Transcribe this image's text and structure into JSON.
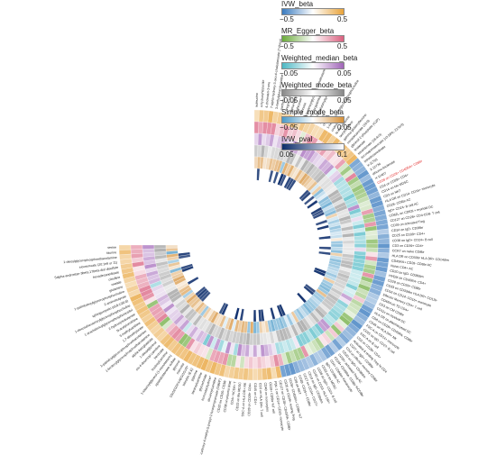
{
  "chart_data": {
    "type": "heatmap",
    "layout": "circular",
    "rings_outer_to_inner": [
      "IVW_beta",
      "MR_Egger_beta",
      "Weighted_median_beta",
      "Weighted_mode_beta",
      "Simple_mode_beta",
      "IVW_pval"
    ],
    "legend": [
      {
        "name": "IVW_beta",
        "range": [
          -0.5,
          0.5
        ],
        "tick_labels": [
          "−0.5",
          "0.5"
        ],
        "colors": [
          "#3a7bbf",
          "#ffffff",
          "#e8a33a"
        ]
      },
      {
        "name": "MR_Egger_beta",
        "range": [
          -0.5,
          0.5
        ],
        "tick_labels": [
          "−0.5",
          "0.5"
        ],
        "colors": [
          "#6aaa3a",
          "#ffffff",
          "#d95f7e"
        ]
      },
      {
        "name": "Weighted_median_beta",
        "range": [
          -0.05,
          0.05
        ],
        "tick_labels": [
          "−0.05",
          "0.05"
        ],
        "colors": [
          "#4cb8c4",
          "#ffffff",
          "#a064b8"
        ]
      },
      {
        "name": "Weighted_mode_beta",
        "range": [
          -0.05,
          0.05
        ],
        "tick_labels": [
          "−0.05",
          "0.05"
        ],
        "colors": [
          "#888888",
          "#ffffff",
          "#888888"
        ]
      },
      {
        "name": "Simple_mode_beta",
        "range": [
          -0.05,
          0.05
        ],
        "tick_labels": [
          "−0.05",
          "0.05"
        ],
        "colors": [
          "#4a9ac8",
          "#ffffff",
          "#d69038"
        ]
      },
      {
        "name": "IVW_pval",
        "range": [
          0.05,
          0.1
        ],
        "tick_labels": [
          "0.05",
          "0.1"
        ],
        "colors": [
          "#0d2d6b",
          "#ffffff"
        ]
      }
    ],
    "labels": [
      "isoleucine",
      "4-hydroxyhippurate",
      "4-cholesten-3-one",
      "7-alpha-hydroxy-3-oxo-4-cholestenoate (7-Hoca)",
      "3-methylglutarylcarnitine",
      "methylsuccinate",
      "pregnenolone",
      "alpha-tocopherol",
      "erythronate*",
      "mannose",
      "1-linolenoylglycerol (1-monolinolenin)",
      "2-hydroxypalmitate",
      "gamma-glutamyltyrosine",
      "glucose",
      "choline",
      "1-heptadecenoylglycerophosphocholine",
      "uridine",
      "N-acetylalanine",
      "laurylcarnitine",
      "gamma-glutamylleucine",
      "nonadecanoate (19:0)",
      "glycerol 2-phosphate (G2P)",
      "linolenate",
      "stearidonate (18:4n3)",
      "docosapentaenoate (n3 DPA; 22:5n3)",
      "tetradecanedioate",
      "X-11793",
      "X-12734",
      "dihomo-linolenate",
      "X-12407",
      "CD28 on CD28+ CD45RA+ CD8br",
      "CD4 on CD28+ CD4+",
      "CD14 on Mo MDSC",
      "CD3 on NKT",
      "HLA DR on CD14- CD16+ monocyte",
      "CD28- CD8br AC",
      "IgD+ CD24- B cell AC",
      "CD62L on CD62L+ myeloid DC",
      "CD127 on CD28+ CD4-CD8- T cell",
      "CD39 on activated Treg",
      "CD24 on IgD- CD38br",
      "CD25 on CD39+ CD4+",
      "CD38 on IgD+ CD24+ B cell",
      "CD3 on CD39+ CD4+",
      "CCR7 on naive CD8br",
      "HLA DR on CD33br HLA DR+ CD14dim",
      "CD45RA+ CD28- CD8br AC",
      "Naive CD4+ AC",
      "CD20 on IgD- CD38dim",
      "HVEM on CD45RA- CD4+",
      "CD28 on CD39+ CD8br",
      "CD33 on CD33dim HLA DR+ CD11b-",
      "CD16 on CD14- CD16+ monocyte",
      "Effector Memory CD4+ T cell",
      "CD4RA on TD CD4+",
      "CD3 on CM CD8br",
      "CD11c on myeloid DC",
      "HLA DR on plasmacytoid DC",
      "CD8 on CD28+ CD45RA- CD8br",
      "CD45 on HLA DR+ NK",
      "FSC-A on CD14+ monocyte",
      "CD25 on IgD- CD27- B cell",
      "SSC-A on B cell",
      "CD3 on CD28+ CD4+",
      "Activated & resting Treg % CD4",
      "CD27 on IgD+ CD38br",
      "CD3 on effector memory CD8br",
      "CD20 on IgD+ CD38dim",
      "CD39+ activated Treg AC",
      "CD28+ CD45RA- CD8br %CD8br",
      "CD4+ CD8dim %leukocyte",
      "IgD+ CD38br AC",
      "CD33 on Im MDSC",
      "CD38 on IgD+ CD24- B cell",
      "CD45 on CD33- HLA DR+",
      "CD19 on IgD- CD38dim",
      "CD27 on CD24+ CD27+",
      "CD28- CD25++ CD8br",
      "CD8 on NKT",
      "CD28+ CD45RA+ CD8br %T",
      "CD25 on CD39+ resting Treg",
      "CD127 on CD28+ CD45RA- CD8br",
      "PDL-1 on CD14+ CD16- monocyte",
      "CD39+ CD8br %T cell",
      "CD40 on monocytes",
      "CD3 on HLA DR+ T cell",
      "CD45 on CD4+",
      "CD28 on CD28+ CD4+",
      "SSC-A on HLA DR+ NK",
      "CD33 on Mo MDSC",
      "CD4+ %CD4+ T",
      "CD38 on plasma blast",
      "CD20 on CD20- CD38-",
      "3-carboxy-4-methyl-5-propyl-2-furanpropanoate (CMPF)",
      "decanoylcarnitine",
      "homostachydrine*",
      "glycocholate",
      "stearoylcarnitine",
      "piperine",
      "bilirubin (E,E)",
      "DSGEGDFXAEGGGVR*",
      "mannitol",
      "glycerol",
      "epiandrosterone sulfate",
      "1-stearoylglycerol (1-monostearin)",
      "linoleoylcarnitine",
      "benzoate",
      "cis-4-decenoyl carnitine",
      "1-oleoylglycerol",
      "alpha-ketoglutarate",
      "1-linoleoylglycerophosphoethanolamine",
      "1-palmitoylglycerophosphoethanolamine",
      "1,7-dimethylurate",
      "3-methylxanthine",
      "N-acetylornithine",
      "2-hydroxyisobutyrate",
      "1-arachidonoylglycerophosphoinositol",
      "1-docosahexaenoylglycerophosphocholine",
      "sphingomyelin (d18:1/20:0)",
      "2-aminobutyrate",
      "1-palmitoleoylglycerophosphocholine",
      "glutamine",
      "oxalate",
      "citrulline",
      "hexadecanedioate",
      "5alpha-androstan-3beta,17beta-diol disulfate",
      "eicosenoate (20:1n9 or 11)",
      "1-oleoylglycerophosphoethanolamine",
      "taurine",
      "serine"
    ],
    "highlighted_label": "CD28 on CD28+ CD45RA+ CD8br"
  }
}
